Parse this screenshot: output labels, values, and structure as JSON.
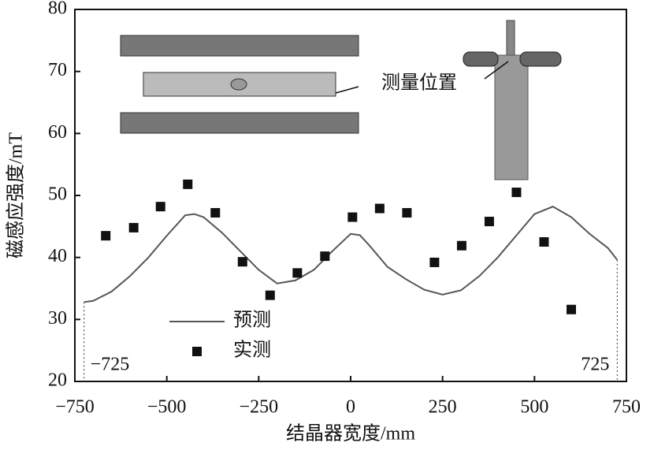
{
  "chart_data": {
    "type": "line-scatter",
    "xlabel": "结晶器宽度/mm",
    "ylabel": "磁感应强度/mT",
    "xlim": [
      -750,
      750
    ],
    "ylim": [
      20,
      80
    ],
    "xticks": [
      {
        "value": -750,
        "label": "−750"
      },
      {
        "value": -500,
        "label": "−500"
      },
      {
        "value": -250,
        "label": "−250"
      },
      0,
      250,
      500,
      750
    ],
    "yticks": [
      20,
      30,
      40,
      50,
      60,
      70,
      80
    ],
    "series": [
      {
        "name": "预测",
        "kind": "line",
        "color": "#555555",
        "x": [
          -725,
          -700,
          -650,
          -600,
          -550,
          -500,
          -450,
          -425,
          -400,
          -350,
          -300,
          -250,
          -200,
          -150,
          -100,
          -50,
          0,
          25,
          50,
          100,
          150,
          200,
          250,
          300,
          350,
          400,
          450,
          500,
          550,
          600,
          650,
          700,
          725
        ],
        "values": [
          32.8,
          33,
          34.5,
          37,
          40,
          43.5,
          46.8,
          47,
          46.5,
          44,
          41,
          38,
          35.8,
          36.3,
          38,
          41,
          43.8,
          43.6,
          42,
          38.5,
          36.5,
          34.8,
          34,
          34.7,
          37,
          40,
          43.5,
          47,
          48.2,
          46.5,
          43.8,
          41.5,
          39.6
        ]
      },
      {
        "name": "实测",
        "kind": "scatter",
        "color": "#111111",
        "x": [
          -666,
          -590,
          -517,
          -443,
          -368,
          -294,
          -219,
          -145,
          -70,
          5,
          79,
          153,
          228,
          302,
          377,
          451,
          526,
          600
        ],
        "values": [
          43.5,
          44.8,
          48.2,
          51.8,
          47.2,
          39.3,
          33.9,
          37.5,
          40.2,
          46.5,
          47.9,
          47.2,
          39.2,
          41.9,
          45.8,
          50.5,
          42.5,
          31.6
        ]
      }
    ],
    "boundaries": [
      {
        "value": -725,
        "label": "−725"
      },
      {
        "value": 725,
        "label": "725"
      }
    ],
    "inset_label": "测量位置"
  }
}
